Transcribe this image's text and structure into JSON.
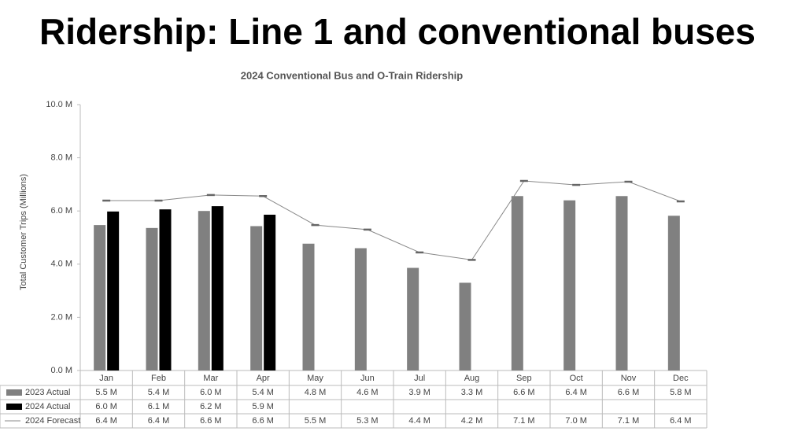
{
  "title": "Ridership: Line 1 and conventional buses",
  "chart_data": {
    "type": "bar",
    "title": "2024 Conventional Bus and O-Train Ridership",
    "y_label": "Total Customer Trips (Millions)",
    "categories": [
      "Jan",
      "Feb",
      "Mar",
      "Apr",
      "May",
      "Jun",
      "Jul",
      "Aug",
      "Sep",
      "Oct",
      "Nov",
      "Dec"
    ],
    "ylim": [
      0,
      10
    ],
    "yticks": [
      {
        "value": 0,
        "label": "0.0 M"
      },
      {
        "value": 2,
        "label": "2.0 M"
      },
      {
        "value": 4,
        "label": "4.0 M"
      },
      {
        "value": 6,
        "label": "6.0 M"
      },
      {
        "value": 8,
        "label": "8.0 M"
      },
      {
        "value": 10,
        "label": "10.0 M"
      }
    ],
    "series": [
      {
        "name": "2023 Actual",
        "type": "bar",
        "color": "#808080",
        "values": [
          5.47,
          5.36,
          6.0,
          5.43,
          4.77,
          4.6,
          3.86,
          3.3,
          6.56,
          6.4,
          6.56,
          5.82
        ],
        "value_labels": [
          "5.5 M",
          "5.4 M",
          "6.0 M",
          "5.4 M",
          "4.8 M",
          "4.6 M",
          "3.9 M",
          "3.3 M",
          "6.6 M",
          "6.4 M",
          "6.6 M",
          "5.8 M"
        ]
      },
      {
        "name": "2024 Actual",
        "type": "bar",
        "color": "#000000",
        "values": [
          5.98,
          6.06,
          6.18,
          5.86,
          null,
          null,
          null,
          null,
          null,
          null,
          null,
          null
        ],
        "value_labels": [
          "6.0 M",
          "6.1 M",
          "6.2 M",
          "5.9 M",
          null,
          null,
          null,
          null,
          null,
          null,
          null,
          null
        ]
      },
      {
        "name": "2024 Forecast",
        "type": "line",
        "color": "#808080",
        "values": [
          6.39,
          6.39,
          6.6,
          6.56,
          5.47,
          5.3,
          4.44,
          4.16,
          7.13,
          6.98,
          7.1,
          6.36
        ],
        "value_labels": [
          "6.4 M",
          "6.4 M",
          "6.6 M",
          "6.6 M",
          "5.5 M",
          "5.3 M",
          "4.4 M",
          "4.2 M",
          "7.1 M",
          "7.0 M",
          "7.1 M",
          "6.4 M"
        ]
      }
    ]
  }
}
